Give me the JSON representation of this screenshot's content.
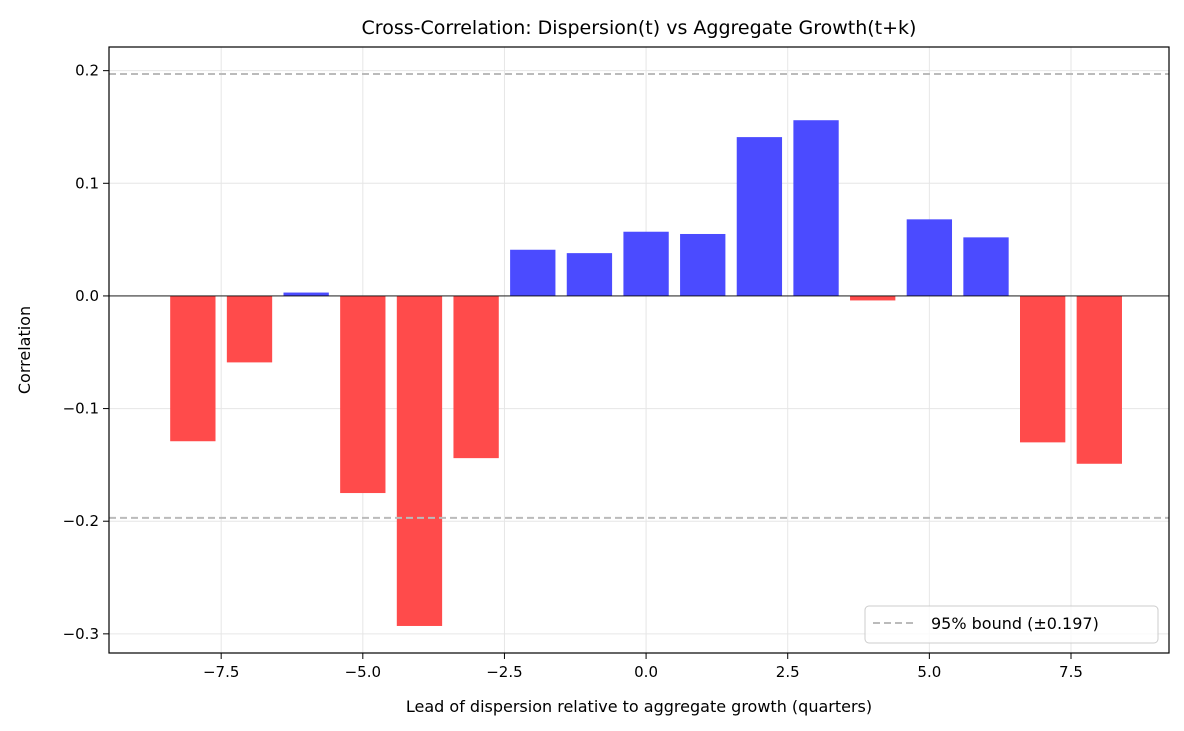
{
  "chart_data": {
    "type": "bar",
    "title": "Cross-Correlation: Dispersion(t) vs Aggregate Growth(t+k)",
    "xlabel": "Lead of dispersion relative to aggregate growth (quarters)",
    "ylabel": "Correlation",
    "x": [
      -8,
      -7,
      -6,
      -5,
      -4,
      -3,
      -2,
      -1,
      0,
      1,
      2,
      3,
      4,
      5,
      6,
      7,
      8
    ],
    "values": [
      -0.129,
      -0.059,
      0.003,
      -0.175,
      -0.293,
      -0.144,
      0.041,
      0.038,
      0.057,
      0.055,
      0.141,
      0.156,
      -0.004,
      0.068,
      0.052,
      -0.13,
      -0.149
    ],
    "xlim": [
      -9.48,
      9.23
    ],
    "ylim": [
      -0.317,
      0.221
    ],
    "xticks": [
      -7.5,
      -5.0,
      -2.5,
      0.0,
      2.5,
      5.0,
      7.5
    ],
    "xtick_labels": [
      "−7.5",
      "−5.0",
      "−2.5",
      "0.0",
      "2.5",
      "5.0",
      "7.5"
    ],
    "yticks": [
      -0.3,
      -0.2,
      -0.1,
      0.0,
      0.1,
      0.2
    ],
    "ytick_labels": [
      "−0.3",
      "−0.2",
      "−0.1",
      "0.0",
      "0.1",
      "0.2"
    ],
    "bound": 0.197,
    "legend": {
      "label": "95% bound (±0.197)",
      "placement": "lower-right"
    },
    "grid": true,
    "colors": {
      "positive": "#4b4bff",
      "negative": "#ff4b4b",
      "bound": "#bbbbbb"
    }
  }
}
